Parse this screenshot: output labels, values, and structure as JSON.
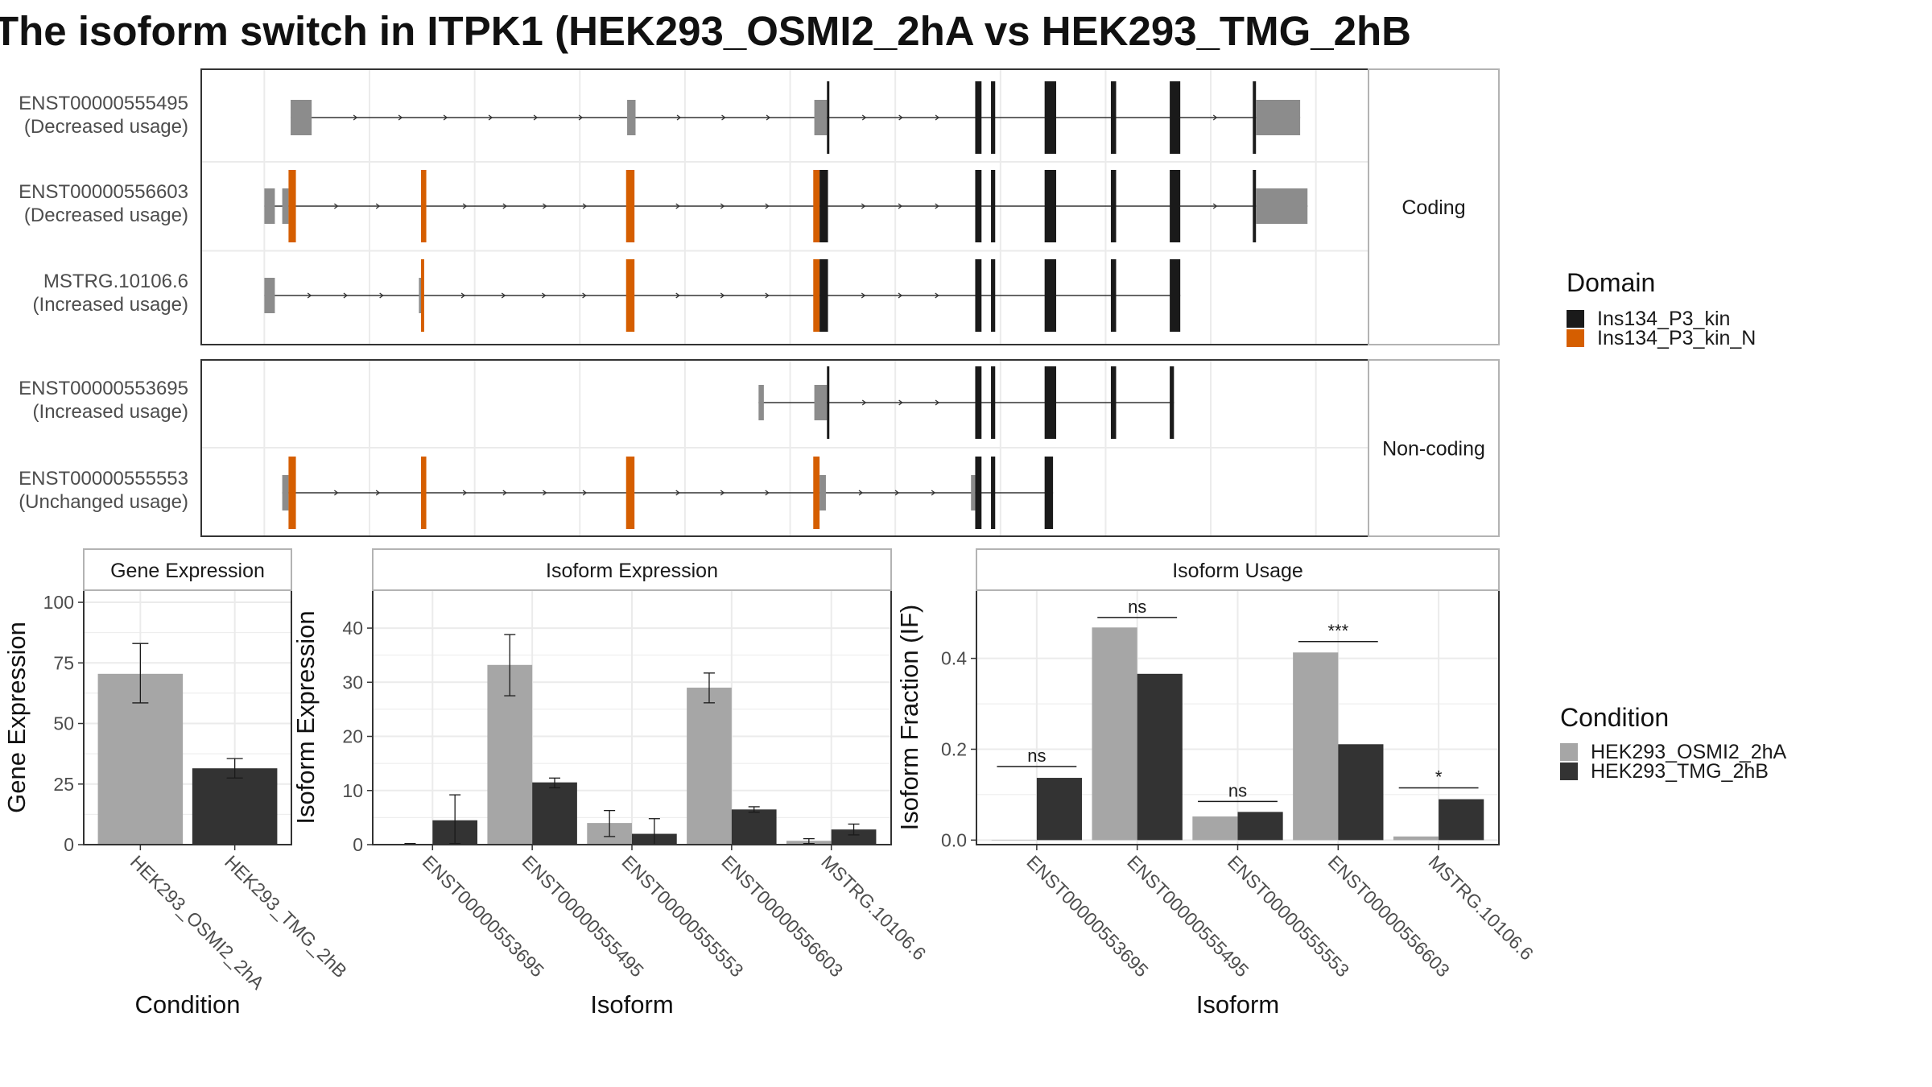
{
  "title": "The isoform switch in ITPK1 (HEK293_OSMI2_2hA vs HEK293_TMG_2hB",
  "colors": {
    "utr": "#8c8c8c",
    "domain_kin": "#1a1a1a",
    "domain_kin_n": "#d55e00",
    "cond_a": "#a6a6a6",
    "cond_b": "#333333",
    "grid": "#ebebeb",
    "strip": "#ffffff",
    "panel_border": "#333333"
  },
  "domain_legend": {
    "title": "Domain",
    "entries": [
      {
        "label": "Ins134_P3_kin",
        "color": "#1a1a1a"
      },
      {
        "label": "Ins134_P3_kin_N",
        "color": "#d55e00"
      }
    ]
  },
  "condition_legend": {
    "title": "Condition",
    "entries": [
      {
        "label": "HEK293_OSMI2_2hA",
        "color": "#a6a6a6"
      },
      {
        "label": "HEK293_TMG_2hB",
        "color": "#333333"
      }
    ]
  },
  "transcripts": {
    "groups": [
      {
        "label": "Coding",
        "rows": [
          {
            "id": "ENST00000555495",
            "usage": "(Decreased usage)",
            "exons": [
              [
                12.5,
                14.5,
                "u"
              ],
              [
                44.5,
                45.3,
                "u"
              ],
              [
                62.3,
                63.5,
                "u"
              ],
              [
                63.5,
                63.7,
                "k"
              ],
              [
                77.6,
                78.2,
                "k"
              ],
              [
                79.1,
                79.5,
                "k"
              ],
              [
                84.2,
                85.3,
                "k"
              ],
              [
                90.5,
                91.0,
                "k"
              ],
              [
                96.1,
                97.1,
                "k"
              ],
              [
                104.0,
                104.3,
                "k"
              ],
              [
                104.3,
                105.2,
                "u"
              ],
              [
                105.2,
                108.5,
                "u"
              ]
            ]
          },
          {
            "id": "ENST00000556603",
            "usage": "(Decreased usage)",
            "exons": [
              [
                10.0,
                11.0,
                "u"
              ],
              [
                11.7,
                12.3,
                "u"
              ],
              [
                12.3,
                13.0,
                "n"
              ],
              [
                24.9,
                25.4,
                "n"
              ],
              [
                44.4,
                45.2,
                "n"
              ],
              [
                62.2,
                62.8,
                "n"
              ],
              [
                62.8,
                63.6,
                "k"
              ],
              [
                77.6,
                78.2,
                "k"
              ],
              [
                79.1,
                79.5,
                "k"
              ],
              [
                84.2,
                85.3,
                "k"
              ],
              [
                90.5,
                91.0,
                "k"
              ],
              [
                96.1,
                97.1,
                "k"
              ],
              [
                104.0,
                104.3,
                "k"
              ],
              [
                104.3,
                105.2,
                "u"
              ],
              [
                105.2,
                109.2,
                "u"
              ]
            ]
          },
          {
            "id": "MSTRG.10106.6",
            "usage": "(Increased usage)",
            "exons": [
              [
                10.0,
                11.0,
                "u"
              ],
              [
                24.7,
                24.9,
                "u"
              ],
              [
                24.9,
                25.2,
                "n"
              ],
              [
                44.4,
                45.2,
                "n"
              ],
              [
                62.2,
                62.8,
                "n"
              ],
              [
                62.8,
                63.6,
                "k"
              ],
              [
                77.6,
                78.2,
                "k"
              ],
              [
                79.1,
                79.5,
                "k"
              ],
              [
                84.2,
                85.3,
                "k"
              ],
              [
                90.5,
                91.0,
                "k"
              ],
              [
                96.1,
                97.1,
                "k"
              ]
            ]
          }
        ]
      },
      {
        "label": "Non-coding",
        "rows": [
          {
            "id": "ENST00000553695",
            "usage": "(Increased usage)",
            "exons": [
              [
                57.0,
                57.5,
                "u"
              ],
              [
                62.3,
                63.5,
                "u"
              ],
              [
                63.5,
                63.7,
                "k"
              ],
              [
                77.6,
                78.2,
                "k"
              ],
              [
                79.1,
                79.5,
                "k"
              ],
              [
                84.2,
                85.3,
                "k"
              ],
              [
                90.5,
                91.0,
                "k"
              ],
              [
                96.1,
                96.5,
                "k"
              ]
            ]
          },
          {
            "id": "ENST00000555553",
            "usage": "(Unchanged usage)",
            "exons": [
              [
                11.7,
                12.3,
                "u"
              ],
              [
                12.3,
                13.0,
                "n"
              ],
              [
                24.9,
                25.4,
                "n"
              ],
              [
                44.4,
                45.2,
                "n"
              ],
              [
                62.2,
                62.8,
                "n"
              ],
              [
                62.8,
                63.4,
                "u"
              ],
              [
                77.2,
                77.6,
                "u"
              ],
              [
                77.6,
                78.2,
                "k"
              ],
              [
                79.1,
                79.5,
                "k"
              ],
              [
                84.2,
                85.0,
                "k"
              ]
            ]
          }
        ]
      }
    ]
  },
  "chart_data": [
    {
      "type": "bar",
      "strip": "Gene Expression",
      "xlabel": "Condition",
      "ylabel": "Gene Expression",
      "ylim": [
        0,
        105
      ],
      "yticks": [
        0,
        25,
        50,
        75,
        100
      ],
      "categories": [
        "HEK293_OSMI2_2hA",
        "HEK293_TMG_2hB"
      ],
      "values": [
        70.5,
        31.5
      ],
      "errors": [
        [
          58.5,
          83.0
        ],
        [
          27.5,
          35.5
        ]
      ],
      "colors": [
        "#a6a6a6",
        "#333333"
      ]
    },
    {
      "type": "bar",
      "strip": "Isoform Expression",
      "xlabel": "Isoform",
      "ylabel": "Isoform Expression",
      "ylim": [
        0,
        47
      ],
      "yticks": [
        0,
        10,
        20,
        30,
        40
      ],
      "categories": [
        "ENST00000553695",
        "ENST00000555495",
        "ENST00000555553",
        "ENST00000556603",
        "MSTRG.10106.6"
      ],
      "series": [
        {
          "name": "HEK293_OSMI2_2hA",
          "values": [
            0.1,
            33.2,
            4.0,
            29.0,
            0.7
          ],
          "errors": [
            [
              0,
              0.2
            ],
            [
              27.5,
              38.8
            ],
            [
              1.5,
              6.3
            ],
            [
              26.2,
              31.7
            ],
            [
              0.2,
              1.1
            ]
          ]
        },
        {
          "name": "HEK293_TMG_2hB",
          "values": [
            4.5,
            11.5,
            2.0,
            6.5,
            2.8
          ],
          "errors": [
            [
              0.2,
              9.2
            ],
            [
              10.5,
              12.3
            ],
            [
              0,
              4.8
            ],
            [
              6.0,
              7.0
            ],
            [
              1.8,
              3.8
            ]
          ]
        }
      ]
    },
    {
      "type": "bar",
      "strip": "Isoform Usage",
      "xlabel": "Isoform",
      "ylabel": "Isoform Fraction (IF)",
      "ylim": [
        -0.01,
        0.55
      ],
      "yticks": [
        0.0,
        0.2,
        0.4
      ],
      "ytick_labels": [
        "0.0",
        "0.2",
        "0.4"
      ],
      "categories": [
        "ENST00000553695",
        "ENST00000555495",
        "ENST00000555553",
        "ENST00000556603",
        "MSTRG.10106.6"
      ],
      "series": [
        {
          "name": "HEK293_OSMI2_2hA",
          "values": [
            0.0,
            0.468,
            0.052,
            0.413,
            0.008
          ]
        },
        {
          "name": "HEK293_TMG_2hB",
          "values": [
            0.137,
            0.366,
            0.062,
            0.211,
            0.09
          ]
        }
      ],
      "significance": [
        {
          "label": "ns",
          "y": 0.162
        },
        {
          "label": "ns",
          "y": 0.49
        },
        {
          "label": "ns",
          "y": 0.085
        },
        {
          "label": "***",
          "y": 0.437
        },
        {
          "label": "*",
          "y": 0.115
        }
      ]
    }
  ]
}
